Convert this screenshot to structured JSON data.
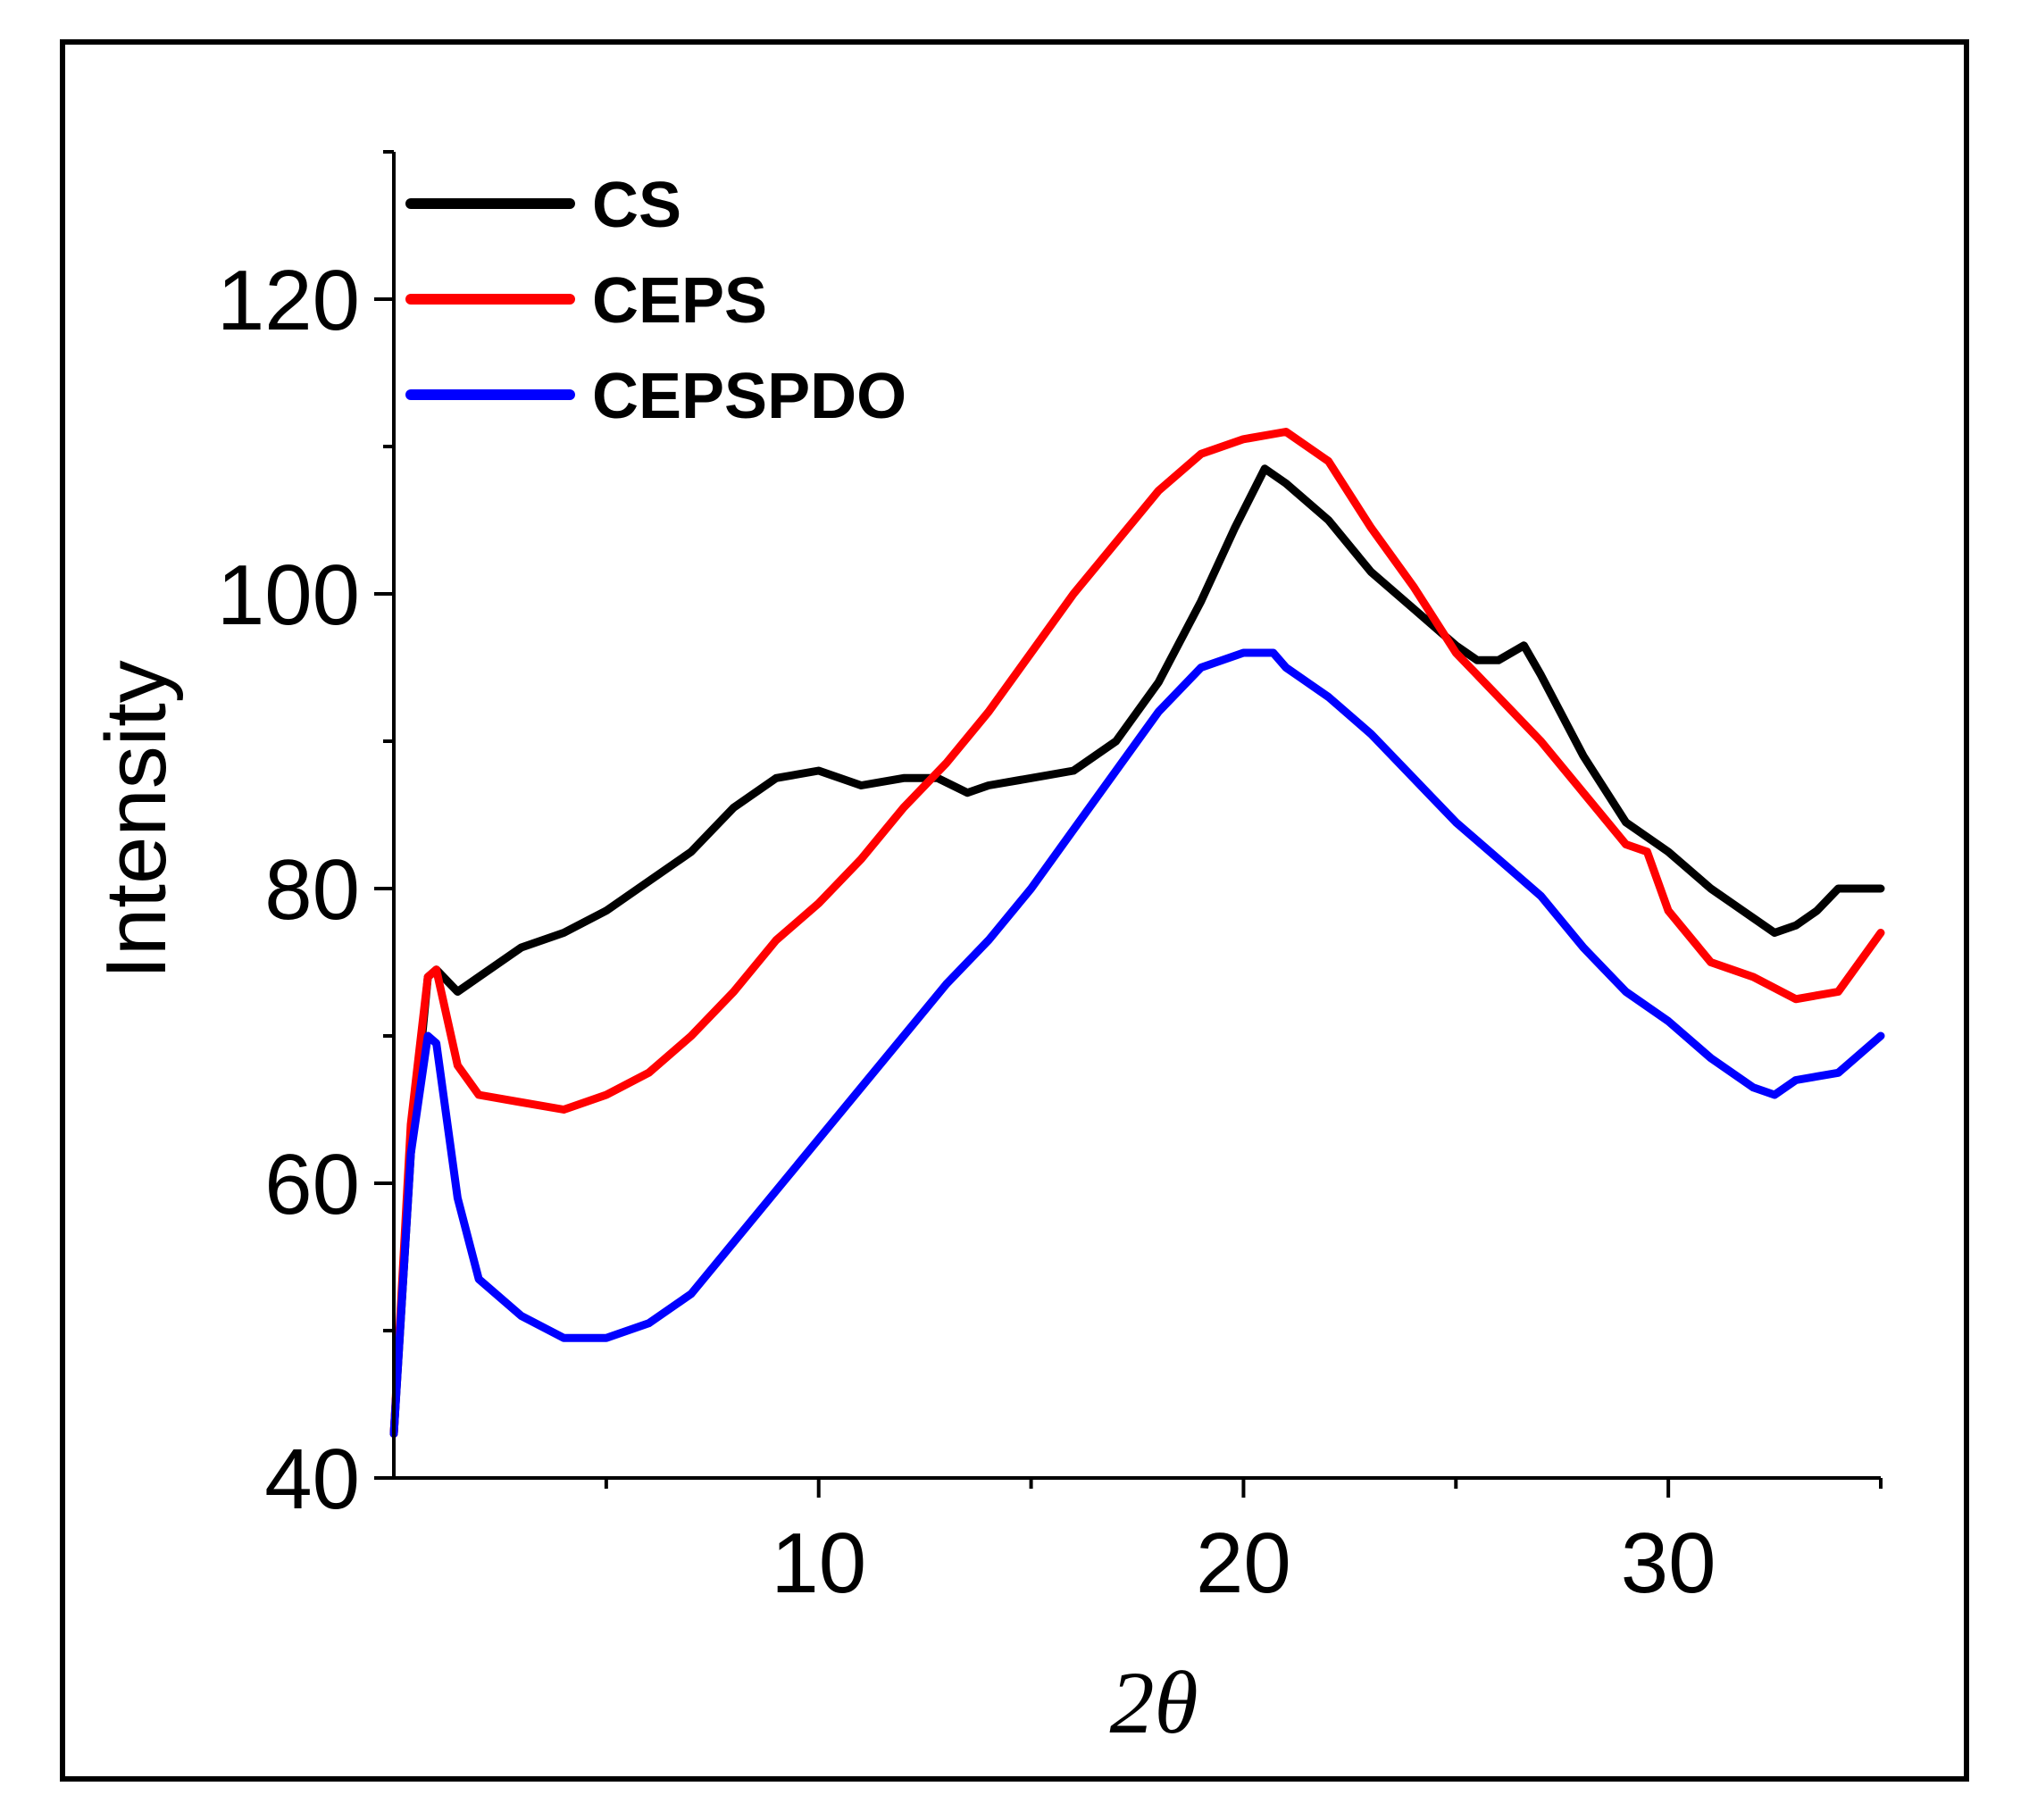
{
  "chart_data": {
    "type": "line",
    "title": "",
    "xlabel": "2θ",
    "ylabel": "Intensity",
    "xlim": [
      0,
      35
    ],
    "ylim": [
      40,
      130
    ],
    "xticks": [
      10,
      20,
      30
    ],
    "xtick_labels": [
      "10",
      "20",
      "30"
    ],
    "xminor_ticks": [
      5,
      15,
      25,
      35
    ],
    "yticks": [
      40,
      60,
      80,
      100,
      120
    ],
    "ytick_labels": [
      "40",
      "60",
      "80",
      "100",
      "120"
    ],
    "yminor_ticks": [
      50,
      70,
      90,
      110,
      130
    ],
    "legend_position": "top-left",
    "series": [
      {
        "name": "CS",
        "color": "#000000",
        "x": [
          0,
          0.4,
          0.8,
          1.0,
          1.5,
          2,
          3,
          4,
          5,
          6,
          7,
          8,
          9,
          10,
          11,
          12,
          12.8,
          13.5,
          14,
          15,
          16,
          17,
          18,
          19,
          19.8,
          20.5,
          21,
          22,
          23,
          24,
          25,
          25.5,
          26,
          26.6,
          27,
          28,
          29,
          30,
          31,
          32,
          32.5,
          33,
          33.5,
          34,
          35
        ],
        "y": [
          43,
          62,
          74,
          74.5,
          73,
          74,
          76,
          77,
          78.5,
          80.5,
          82.5,
          85.5,
          87.5,
          88,
          87,
          87.5,
          87.5,
          86.5,
          87,
          87.5,
          88,
          90,
          94,
          99.5,
          104.5,
          108.5,
          107.5,
          105,
          101.5,
          99,
          96.5,
          95.5,
          95.5,
          96.5,
          94.5,
          89,
          84.5,
          82.5,
          80,
          78,
          77,
          77.5,
          78.5,
          80,
          80
        ]
      },
      {
        "name": "CEPS",
        "color": "#ff0000",
        "x": [
          0,
          0.4,
          0.8,
          1.0,
          1.5,
          2,
          3,
          4,
          5,
          6,
          7,
          8,
          9,
          10,
          11,
          12,
          13,
          14,
          15,
          16,
          17,
          18,
          19,
          20,
          21,
          22,
          23,
          24,
          25,
          26,
          27,
          28,
          29,
          29.5,
          30,
          31,
          32,
          33,
          34,
          35
        ],
        "y": [
          43,
          64,
          74,
          74.5,
          68,
          66,
          65.5,
          65,
          66,
          67.5,
          70,
          73,
          76.5,
          79,
          82,
          85.5,
          88.5,
          92,
          96,
          100,
          103.5,
          107,
          109.5,
          110.5,
          111,
          109,
          104.5,
          100.5,
          96,
          93,
          90,
          86.5,
          83,
          82.5,
          78.5,
          75,
          74,
          72.5,
          73,
          77
        ]
      },
      {
        "name": "CEPSPDO",
        "color": "#0000ff",
        "x": [
          0,
          0.4,
          0.8,
          1.0,
          1.5,
          2,
          3,
          4,
          5,
          6,
          7,
          8,
          9,
          10,
          11,
          12,
          13,
          14,
          15,
          16,
          17,
          18,
          19,
          20,
          20.7,
          21,
          22,
          23,
          24,
          25,
          26,
          27,
          28,
          29,
          30,
          31,
          32,
          32.5,
          33,
          34,
          35
        ],
        "y": [
          43,
          62,
          70,
          69.5,
          59,
          53.5,
          51,
          49.5,
          49.5,
          50.5,
          52.5,
          56,
          59.5,
          63,
          66.5,
          70,
          73.5,
          76.5,
          80,
          84,
          88,
          92,
          95,
          96,
          96,
          95,
          93,
          90.5,
          87.5,
          84.5,
          82,
          79.5,
          76,
          73,
          71,
          68.5,
          66.5,
          66,
          67,
          67.5,
          70
        ]
      }
    ]
  }
}
